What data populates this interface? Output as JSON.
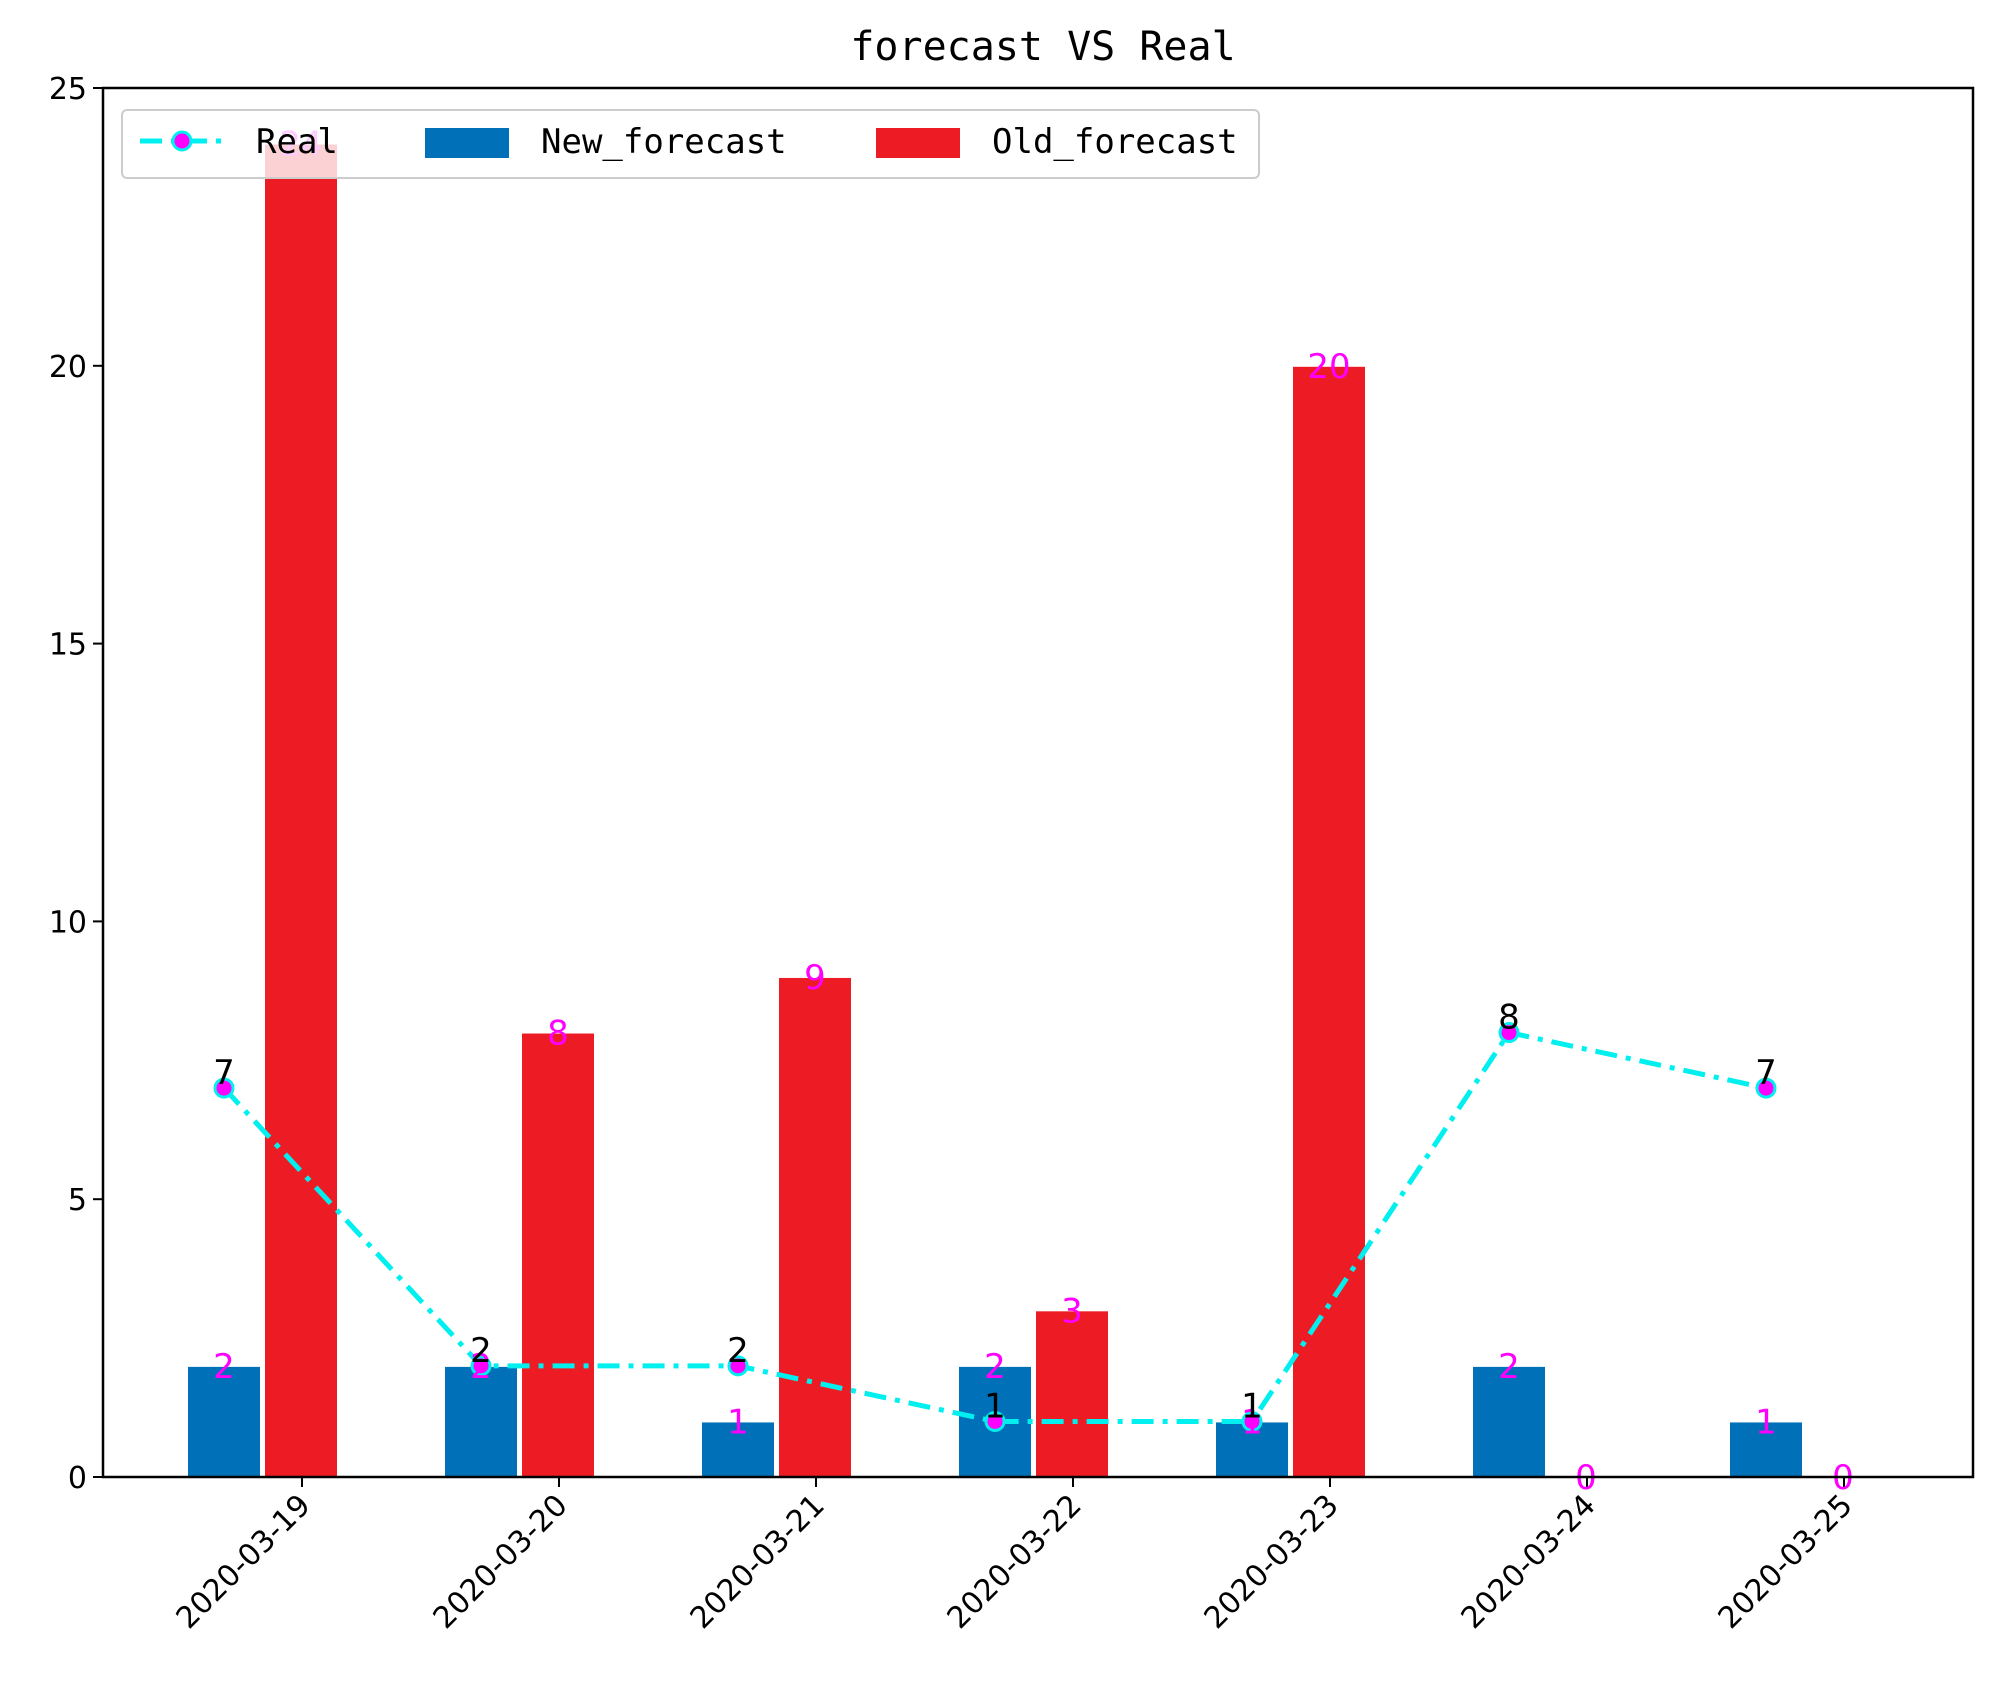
{
  "chart_data": {
    "type": "bar",
    "title": "forecast VS Real",
    "xlabel": "",
    "ylabel": "",
    "categories": [
      "2020-03-19",
      "2020-03-20",
      "2020-03-21",
      "2020-03-22",
      "2020-03-23",
      "2020-03-24",
      "2020-03-25"
    ],
    "ylim": [
      0,
      25
    ],
    "yticks": [
      "0",
      "5",
      "10",
      "15",
      "20",
      "25"
    ],
    "grid": false,
    "legend_position": "top-left",
    "series": [
      {
        "name": "Real",
        "kind": "line",
        "line_style": "dash-dot",
        "color": "#00f0f0",
        "marker_color": "#ff00ff",
        "label_color": "#000000",
        "values": [
          7,
          2,
          2,
          1,
          1,
          8,
          7
        ]
      },
      {
        "name": "New_forecast",
        "kind": "bar",
        "color": "#0070b8",
        "label_color": "#ff00ff",
        "values": [
          2,
          2,
          1,
          2,
          1,
          2,
          1
        ]
      },
      {
        "name": "Old_forecast",
        "kind": "bar",
        "color": "#ed1c24",
        "label_color": "#ff00ff",
        "values": [
          24,
          8,
          9,
          3,
          20,
          0,
          0
        ]
      }
    ]
  }
}
